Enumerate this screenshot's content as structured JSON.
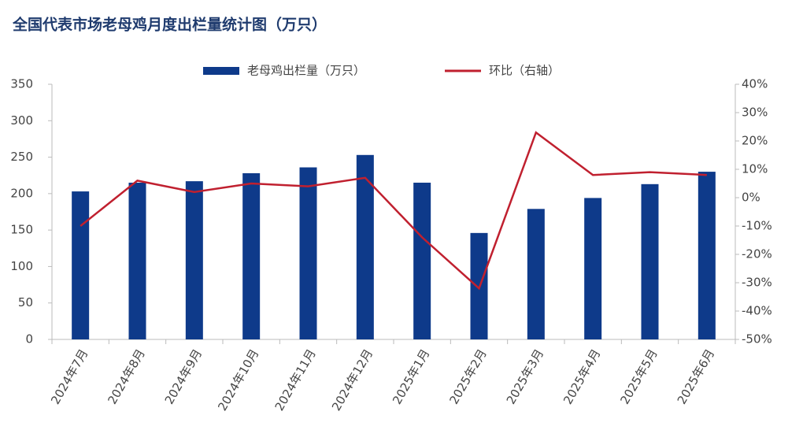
{
  "chart_data": {
    "type": "bar",
    "title": "全国代表市场老母鸡月度出栏量统计图（万只）",
    "categories": [
      "2024年7月",
      "2024年8月",
      "2024年9月",
      "2024年10月",
      "2024年11月",
      "2024年12月",
      "2025年1月",
      "2025年2月",
      "2025年3月",
      "2025年4月",
      "2025年5月",
      "2025年6月"
    ],
    "series": [
      {
        "name": "老母鸡出栏量（万只）",
        "type": "bar",
        "color": "#0e3a8a",
        "values": [
          203,
          215,
          217,
          228,
          236,
          253,
          215,
          146,
          179,
          194,
          213,
          230
        ]
      },
      {
        "name": "环比（右轴）",
        "type": "line",
        "color": "#c0202f",
        "axis": "y2",
        "values": [
          -10,
          6,
          2,
          5,
          4,
          7,
          -14,
          -32,
          23,
          8,
          9,
          8
        ]
      }
    ],
    "ylim": [
      0,
      350
    ],
    "yticks": [
      0,
      50,
      100,
      150,
      200,
      250,
      300,
      350
    ],
    "y2lim": [
      -50,
      40
    ],
    "y2ticks": [
      {
        "value": -50,
        "label": "-50%"
      },
      {
        "value": -40,
        "label": "-40%"
      },
      {
        "value": -30,
        "label": "-30%"
      },
      {
        "value": -20,
        "label": "-20%"
      },
      {
        "value": -10,
        "label": "-10%"
      },
      {
        "value": 0,
        "label": "0%"
      },
      {
        "value": 10,
        "label": "10%"
      },
      {
        "value": 20,
        "label": "20%"
      },
      {
        "value": 30,
        "label": "30%"
      },
      {
        "value": 40,
        "label": "40%"
      }
    ],
    "grid": false,
    "legend": "top"
  }
}
